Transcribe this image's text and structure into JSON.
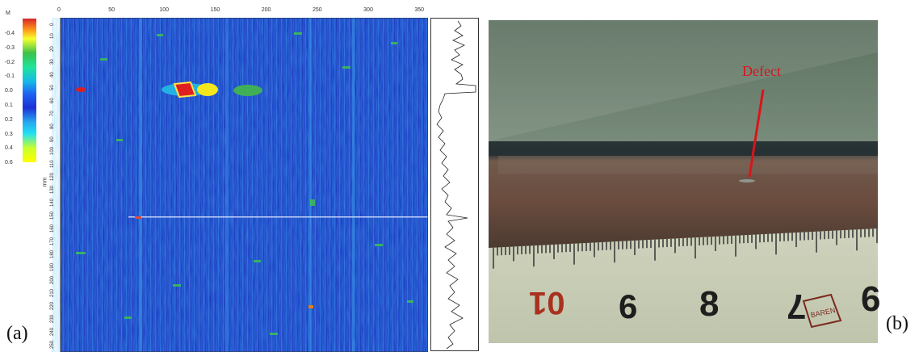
{
  "panel_a": {
    "letter": "(a)",
    "colorbar": {
      "unit": "M",
      "labels": [
        "-0.4",
        "-0.3",
        "-0.2",
        "-0.1",
        "0.0",
        "0.1",
        "0.2",
        "0.3",
        "0.4",
        "0.6"
      ],
      "colors": [
        "#d7262a",
        "#ff9b1a",
        "#f7ff2a",
        "#3cc24a",
        "#1fe49a",
        "#14b8e8",
        "#1d66f2",
        "#1c30d6",
        "#24a8ee",
        "#c8ff2c",
        "#ffff00"
      ]
    },
    "x_ticks": [
      "0",
      "50",
      "100",
      "150",
      "200",
      "250",
      "300",
      "350"
    ],
    "y_axis_label": "mm",
    "y_ticks": [
      "0",
      "10",
      "20",
      "30",
      "40",
      "50",
      "60",
      "70",
      "80",
      "90",
      "100",
      "110",
      "120",
      "130",
      "140",
      "150",
      "160",
      "170",
      "180",
      "190",
      "200",
      "210",
      "220",
      "230",
      "240",
      "250"
    ]
  },
  "panel_b": {
    "letter": "(b)",
    "defect_label": "Defect",
    "ruler_numbers": [
      "01",
      "6",
      "8",
      "7",
      "6"
    ],
    "stamp_text": "BAREN"
  },
  "colors": {
    "map_background": "#1a3fc7",
    "defect_red": "#e01f1f",
    "defect_yellow": "#f4e81c",
    "defect_green": "#44b84a",
    "annotation_red": "#d9141b"
  }
}
